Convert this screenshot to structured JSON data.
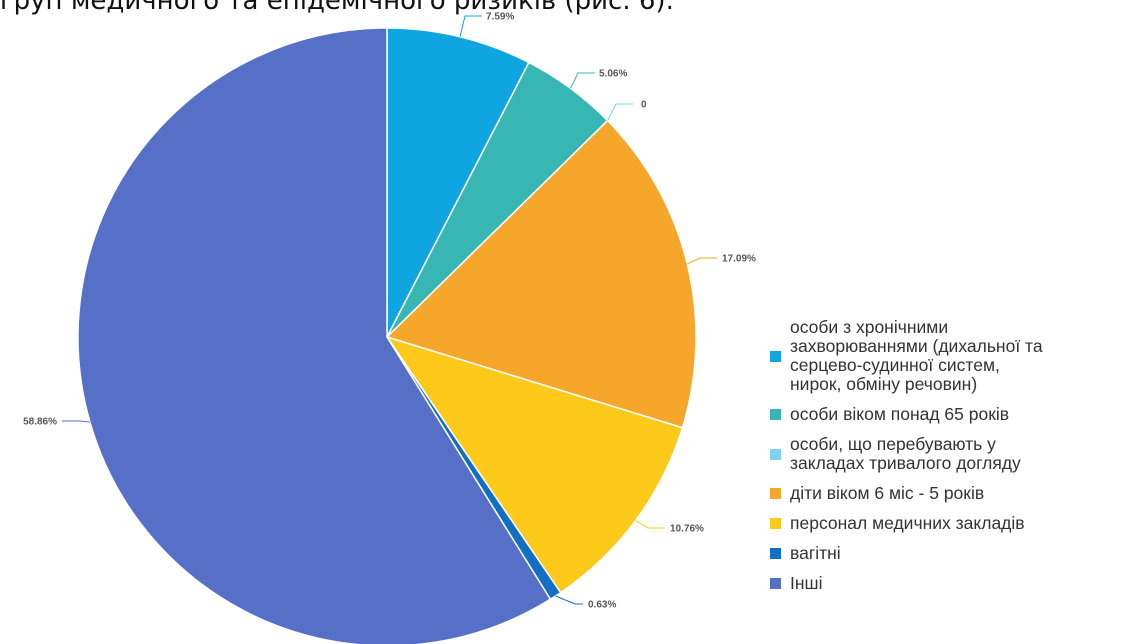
{
  "header_fragment": "груп медичного та епідемічного ризиків (рис. 6).",
  "chart_data": {
    "type": "pie",
    "start_angle_deg": 0,
    "direction": "clockwise",
    "slices": [
      {
        "name": "особи з хронічними\nзахворюваннями (дихальної та\n серцево-судинної систем,\nнирок, обміну речовин)",
        "value": 7.59,
        "label": "7.59%",
        "color": "#0ea5e0"
      },
      {
        "name": "особи віком понад 65 років",
        "value": 5.06,
        "label": "5.06%",
        "color": "#37b6b4"
      },
      {
        "name": "особи, що перебувають у\nзакладах тривалого догляду",
        "value": 0,
        "label": "0",
        "color": "#83cff0"
      },
      {
        "name": "діти віком 6 міс - 5 років",
        "value": 17.09,
        "label": "17.09%",
        "color": "#f6a62b"
      },
      {
        "name": "персонал медичних закладів",
        "value": 10.76,
        "label": "10.76%",
        "color": "#fdc91b"
      },
      {
        "name": "вагітні",
        "value": 0.63,
        "label": "0.63%",
        "color": "#1170c2"
      },
      {
        "name": "Інші",
        "value": 58.86,
        "label": "58.86%",
        "color": "#5670c7"
      }
    ],
    "legend_position": "right-bottom"
  }
}
